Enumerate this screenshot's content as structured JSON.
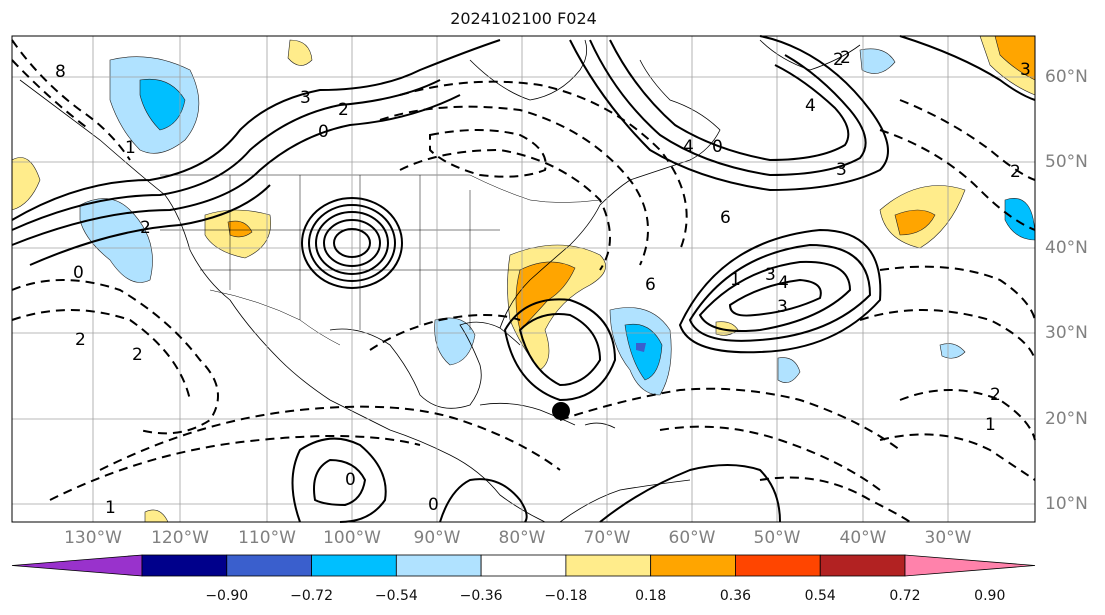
{
  "title": "2024102100 F024",
  "map": {
    "lon_labels": [
      "130°W",
      "120°W",
      "110°W",
      "100°W",
      "90°W",
      "80°W",
      "70°W",
      "60°W",
      "50°W",
      "40°W",
      "30°W"
    ],
    "lat_labels": [
      "60°N",
      "50°N",
      "40°N",
      "30°N",
      "20°N",
      "10°N"
    ],
    "contour_labels": [
      "8",
      "3",
      "2",
      "0",
      "4",
      "3",
      "2",
      "4",
      "0",
      "6",
      "6",
      "1",
      "2",
      "0",
      "1",
      "2",
      "3",
      "4",
      "3",
      "3",
      "2",
      "1",
      "0",
      "0",
      "2",
      "1",
      "2",
      "2"
    ],
    "marker": "storm-center-dot"
  },
  "colorbar": {
    "ticks": [
      "−0.90",
      "−0.72",
      "−0.54",
      "−0.36",
      "−0.18",
      "0.18",
      "0.36",
      "0.54",
      "0.72",
      "0.90"
    ],
    "colors": [
      "#9932cc",
      "#00008b",
      "#3a5fcd",
      "#00bfff",
      "#b0e2ff",
      "#ffffff",
      "#ffec8b",
      "#ffa500",
      "#ff4500",
      "#b22222",
      "#ff82ab"
    ]
  }
}
